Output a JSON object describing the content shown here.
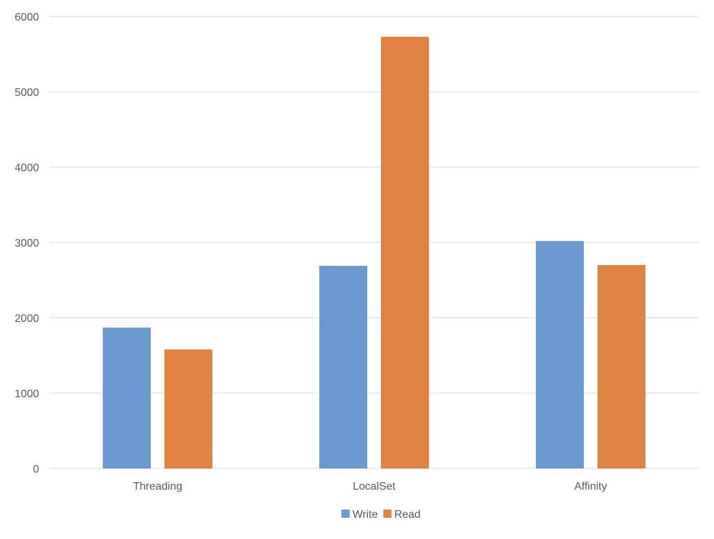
{
  "chart_data": {
    "type": "bar",
    "title": "",
    "xlabel": "",
    "ylabel": "",
    "categories": [
      "Threading",
      "LocalSet",
      "Affinity"
    ],
    "series": [
      {
        "name": "Write",
        "color": "#6a9ad0",
        "values": [
          1870,
          2690,
          3020
        ]
      },
      {
        "name": "Read",
        "color": "#df8344",
        "values": [
          1580,
          5730,
          2700
        ]
      }
    ],
    "ylim": [
      0,
      6000
    ],
    "yticks": [
      "0",
      "1000",
      "2000",
      "3000",
      "4000",
      "5000",
      "6000"
    ],
    "grid": true,
    "gridline_color": "#d9d9d9",
    "legend_position": "bottom-center"
  }
}
